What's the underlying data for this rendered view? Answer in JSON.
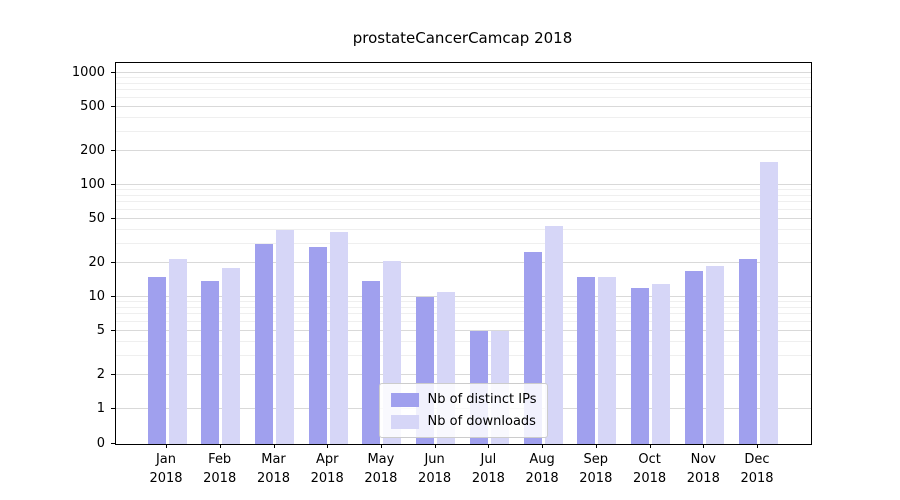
{
  "title": "prostateCancerCamcap 2018",
  "chart_data": {
    "type": "bar",
    "title": "prostateCancerCamcap 2018",
    "yscale": "symlog",
    "grid": true,
    "legend_position": "lower center",
    "xlabel": "",
    "ylabel": "",
    "ylim": [
      0,
      1000
    ],
    "yticks": [
      0,
      1,
      2,
      5,
      10,
      20,
      50,
      100,
      200,
      500,
      1000
    ],
    "categories": [
      {
        "line1": "Jan",
        "line2": "2018"
      },
      {
        "line1": "Feb",
        "line2": "2018"
      },
      {
        "line1": "Mar",
        "line2": "2018"
      },
      {
        "line1": "Apr",
        "line2": "2018"
      },
      {
        "line1": "May",
        "line2": "2018"
      },
      {
        "line1": "Jun",
        "line2": "2018"
      },
      {
        "line1": "Jul",
        "line2": "2018"
      },
      {
        "line1": "Aug",
        "line2": "2018"
      },
      {
        "line1": "Sep",
        "line2": "2018"
      },
      {
        "line1": "Oct",
        "line2": "2018"
      },
      {
        "line1": "Nov",
        "line2": "2018"
      },
      {
        "line1": "Dec",
        "line2": "2018"
      }
    ],
    "series": [
      {
        "name": "Nb of distinct IPs",
        "color": "#a0a0ee",
        "values": [
          15,
          14,
          30,
          28,
          14,
          10,
          5,
          25,
          15,
          12,
          17,
          22
        ]
      },
      {
        "name": "Nb of downloads",
        "color": "#d6d6f7",
        "values": [
          22,
          18,
          40,
          38,
          21,
          11,
          5,
          43,
          15,
          13,
          19,
          160
        ]
      }
    ]
  }
}
